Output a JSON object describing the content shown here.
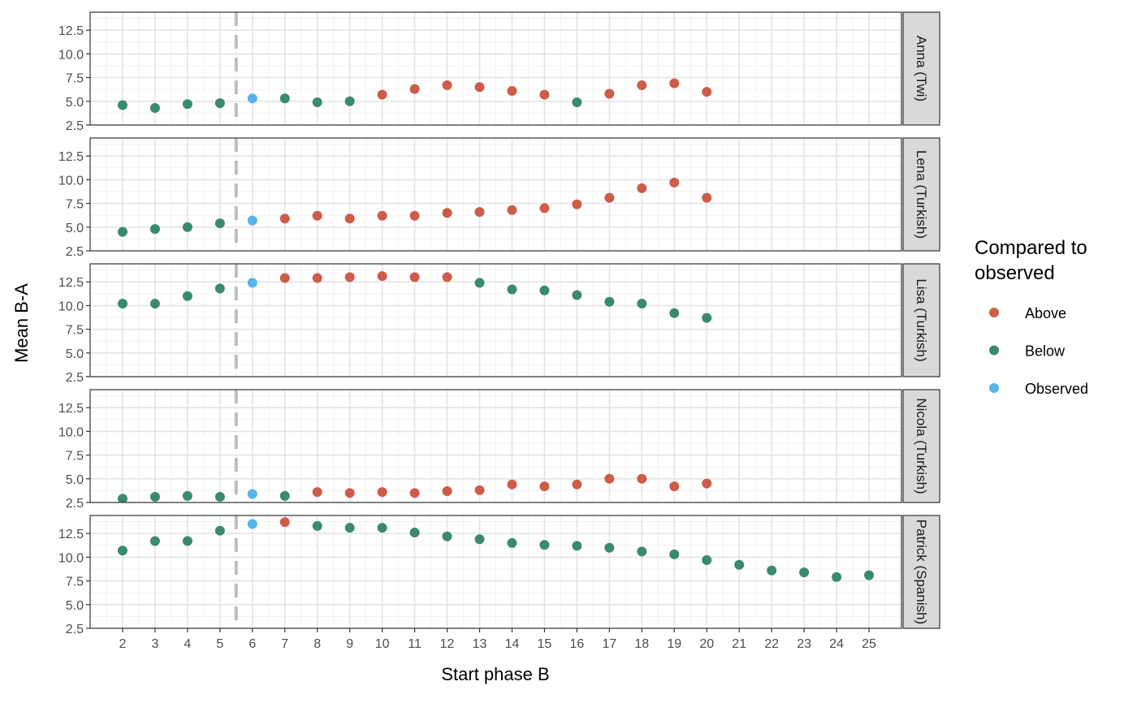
{
  "chart_data": {
    "type": "scatter",
    "xlabel": "Start phase B",
    "ylabel": "Mean B-A",
    "xlim": [
      1,
      26
    ],
    "ylim": [
      2.5,
      14.4
    ],
    "x_ticks": [
      2,
      3,
      4,
      5,
      6,
      7,
      8,
      9,
      10,
      11,
      12,
      13,
      14,
      15,
      16,
      17,
      18,
      19,
      20,
      21,
      22,
      23,
      24,
      25
    ],
    "y_ticks": [
      2.5,
      5.0,
      7.5,
      10.0,
      12.5
    ],
    "y_tick_labels": [
      "2.5",
      "5.0",
      "7.5",
      "10.0",
      "12.5"
    ],
    "reference_line": {
      "x": 5.5,
      "style": "dashed",
      "color": "#bebebe"
    },
    "grid": true,
    "legend": {
      "title": "Compared to observed",
      "title_lines": [
        "Compared to",
        "observed"
      ],
      "position": "right",
      "entries": [
        {
          "name": "Above",
          "color": "#cd5c48"
        },
        {
          "name": "Below",
          "color": "#3a8a6d"
        },
        {
          "name": "Observed",
          "color": "#56b4e9"
        }
      ]
    },
    "panels": [
      {
        "label": "Anna (Twi)",
        "points": [
          {
            "x": 2,
            "y": 4.6,
            "group": "Below"
          },
          {
            "x": 3,
            "y": 4.3,
            "group": "Below"
          },
          {
            "x": 4,
            "y": 4.7,
            "group": "Below"
          },
          {
            "x": 5,
            "y": 4.8,
            "group": "Below"
          },
          {
            "x": 6,
            "y": 5.3,
            "group": "Observed"
          },
          {
            "x": 7,
            "y": 5.3,
            "group": "Below"
          },
          {
            "x": 8,
            "y": 4.9,
            "group": "Below"
          },
          {
            "x": 9,
            "y": 5.0,
            "group": "Below"
          },
          {
            "x": 10,
            "y": 5.7,
            "group": "Above"
          },
          {
            "x": 11,
            "y": 6.3,
            "group": "Above"
          },
          {
            "x": 12,
            "y": 6.7,
            "group": "Above"
          },
          {
            "x": 13,
            "y": 6.5,
            "group": "Above"
          },
          {
            "x": 14,
            "y": 6.1,
            "group": "Above"
          },
          {
            "x": 15,
            "y": 5.7,
            "group": "Above"
          },
          {
            "x": 16,
            "y": 4.9,
            "group": "Below"
          },
          {
            "x": 17,
            "y": 5.8,
            "group": "Above"
          },
          {
            "x": 18,
            "y": 6.7,
            "group": "Above"
          },
          {
            "x": 19,
            "y": 6.9,
            "group": "Above"
          },
          {
            "x": 20,
            "y": 6.0,
            "group": "Above"
          }
        ]
      },
      {
        "label": "Lena (Turkish)",
        "points": [
          {
            "x": 2,
            "y": 4.5,
            "group": "Below"
          },
          {
            "x": 3,
            "y": 4.8,
            "group": "Below"
          },
          {
            "x": 4,
            "y": 5.0,
            "group": "Below"
          },
          {
            "x": 5,
            "y": 5.4,
            "group": "Below"
          },
          {
            "x": 6,
            "y": 5.7,
            "group": "Observed"
          },
          {
            "x": 7,
            "y": 5.9,
            "group": "Above"
          },
          {
            "x": 8,
            "y": 6.2,
            "group": "Above"
          },
          {
            "x": 9,
            "y": 5.9,
            "group": "Above"
          },
          {
            "x": 10,
            "y": 6.2,
            "group": "Above"
          },
          {
            "x": 11,
            "y": 6.2,
            "group": "Above"
          },
          {
            "x": 12,
            "y": 6.5,
            "group": "Above"
          },
          {
            "x": 13,
            "y": 6.6,
            "group": "Above"
          },
          {
            "x": 14,
            "y": 6.8,
            "group": "Above"
          },
          {
            "x": 15,
            "y": 7.0,
            "group": "Above"
          },
          {
            "x": 16,
            "y": 7.4,
            "group": "Above"
          },
          {
            "x": 17,
            "y": 8.1,
            "group": "Above"
          },
          {
            "x": 18,
            "y": 9.1,
            "group": "Above"
          },
          {
            "x": 19,
            "y": 9.7,
            "group": "Above"
          },
          {
            "x": 20,
            "y": 8.1,
            "group": "Above"
          }
        ]
      },
      {
        "label": "Lisa (Turkish)",
        "points": [
          {
            "x": 2,
            "y": 10.2,
            "group": "Below"
          },
          {
            "x": 3,
            "y": 10.2,
            "group": "Below"
          },
          {
            "x": 4,
            "y": 11.0,
            "group": "Below"
          },
          {
            "x": 5,
            "y": 11.8,
            "group": "Below"
          },
          {
            "x": 6,
            "y": 12.4,
            "group": "Observed"
          },
          {
            "x": 7,
            "y": 12.9,
            "group": "Above"
          },
          {
            "x": 8,
            "y": 12.9,
            "group": "Above"
          },
          {
            "x": 9,
            "y": 13.0,
            "group": "Above"
          },
          {
            "x": 10,
            "y": 13.1,
            "group": "Above"
          },
          {
            "x": 11,
            "y": 13.0,
            "group": "Above"
          },
          {
            "x": 12,
            "y": 13.0,
            "group": "Above"
          },
          {
            "x": 13,
            "y": 12.4,
            "group": "Below"
          },
          {
            "x": 14,
            "y": 11.7,
            "group": "Below"
          },
          {
            "x": 15,
            "y": 11.6,
            "group": "Below"
          },
          {
            "x": 16,
            "y": 11.1,
            "group": "Below"
          },
          {
            "x": 17,
            "y": 10.4,
            "group": "Below"
          },
          {
            "x": 18,
            "y": 10.2,
            "group": "Below"
          },
          {
            "x": 19,
            "y": 9.2,
            "group": "Below"
          },
          {
            "x": 20,
            "y": 8.7,
            "group": "Below"
          }
        ]
      },
      {
        "label": "Nicola (Turkish)",
        "points": [
          {
            "x": 2,
            "y": 2.9,
            "group": "Below"
          },
          {
            "x": 3,
            "y": 3.1,
            "group": "Below"
          },
          {
            "x": 4,
            "y": 3.2,
            "group": "Below"
          },
          {
            "x": 5,
            "y": 3.1,
            "group": "Below"
          },
          {
            "x": 6,
            "y": 3.4,
            "group": "Observed"
          },
          {
            "x": 7,
            "y": 3.2,
            "group": "Below"
          },
          {
            "x": 8,
            "y": 3.6,
            "group": "Above"
          },
          {
            "x": 9,
            "y": 3.5,
            "group": "Above"
          },
          {
            "x": 10,
            "y": 3.6,
            "group": "Above"
          },
          {
            "x": 11,
            "y": 3.5,
            "group": "Above"
          },
          {
            "x": 12,
            "y": 3.7,
            "group": "Above"
          },
          {
            "x": 13,
            "y": 3.8,
            "group": "Above"
          },
          {
            "x": 14,
            "y": 4.4,
            "group": "Above"
          },
          {
            "x": 15,
            "y": 4.2,
            "group": "Above"
          },
          {
            "x": 16,
            "y": 4.4,
            "group": "Above"
          },
          {
            "x": 17,
            "y": 5.0,
            "group": "Above"
          },
          {
            "x": 18,
            "y": 5.0,
            "group": "Above"
          },
          {
            "x": 19,
            "y": 4.2,
            "group": "Above"
          },
          {
            "x": 20,
            "y": 4.5,
            "group": "Above"
          }
        ]
      },
      {
        "label": "Patrick (Spanish)",
        "points": [
          {
            "x": 2,
            "y": 10.7,
            "group": "Below"
          },
          {
            "x": 3,
            "y": 11.7,
            "group": "Below"
          },
          {
            "x": 4,
            "y": 11.7,
            "group": "Below"
          },
          {
            "x": 5,
            "y": 12.8,
            "group": "Below"
          },
          {
            "x": 6,
            "y": 13.5,
            "group": "Observed"
          },
          {
            "x": 7,
            "y": 13.7,
            "group": "Above"
          },
          {
            "x": 8,
            "y": 13.3,
            "group": "Below"
          },
          {
            "x": 9,
            "y": 13.1,
            "group": "Below"
          },
          {
            "x": 10,
            "y": 13.1,
            "group": "Below"
          },
          {
            "x": 11,
            "y": 12.6,
            "group": "Below"
          },
          {
            "x": 12,
            "y": 12.2,
            "group": "Below"
          },
          {
            "x": 13,
            "y": 11.9,
            "group": "Below"
          },
          {
            "x": 14,
            "y": 11.5,
            "group": "Below"
          },
          {
            "x": 15,
            "y": 11.3,
            "group": "Below"
          },
          {
            "x": 16,
            "y": 11.2,
            "group": "Below"
          },
          {
            "x": 17,
            "y": 11.0,
            "group": "Below"
          },
          {
            "x": 18,
            "y": 10.6,
            "group": "Below"
          },
          {
            "x": 19,
            "y": 10.3,
            "group": "Below"
          },
          {
            "x": 20,
            "y": 9.7,
            "group": "Below"
          },
          {
            "x": 21,
            "y": 9.2,
            "group": "Below"
          },
          {
            "x": 22,
            "y": 8.6,
            "group": "Below"
          },
          {
            "x": 23,
            "y": 8.4,
            "group": "Below"
          },
          {
            "x": 24,
            "y": 7.9,
            "group": "Below"
          },
          {
            "x": 25,
            "y": 8.1,
            "group": "Below"
          }
        ]
      }
    ]
  }
}
